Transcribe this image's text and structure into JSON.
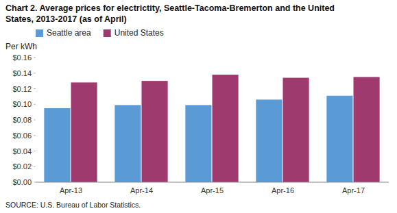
{
  "chart_data": {
    "type": "bar",
    "title": "Chart 2. Average prices for electrictity, Seattle-Tacoma-Bremerton and the United",
    "subtitle": "States, 2013-2017  (as of April)",
    "y_label": "Per kWh",
    "source": "SOURCE: U.S. Bureau of Labor Statistics.",
    "categories": [
      "Apr-13",
      "Apr-14",
      "Apr-15",
      "Apr-16",
      "Apr-17"
    ],
    "series": [
      {
        "name": "Seattle area",
        "color": "#5B9BD5",
        "values": [
          0.095,
          0.099,
          0.099,
          0.106,
          0.111
        ]
      },
      {
        "name": "United States",
        "color": "#9E3A6E",
        "values": [
          0.128,
          0.13,
          0.138,
          0.134,
          0.135
        ]
      }
    ],
    "ylim": [
      0,
      0.16
    ],
    "yticks": [
      {
        "value": 0.0,
        "label": "$0.00"
      },
      {
        "value": 0.02,
        "label": "$0.02"
      },
      {
        "value": 0.04,
        "label": "$0.04"
      },
      {
        "value": 0.06,
        "label": "$0.06"
      },
      {
        "value": 0.08,
        "label": "$0.08"
      },
      {
        "value": 0.1,
        "label": "$0.10"
      },
      {
        "value": 0.12,
        "label": "$0.12"
      },
      {
        "value": 0.14,
        "label": "$0.14"
      },
      {
        "value": 0.16,
        "label": "$0.16"
      }
    ],
    "grid": false,
    "legend": "top-left"
  }
}
